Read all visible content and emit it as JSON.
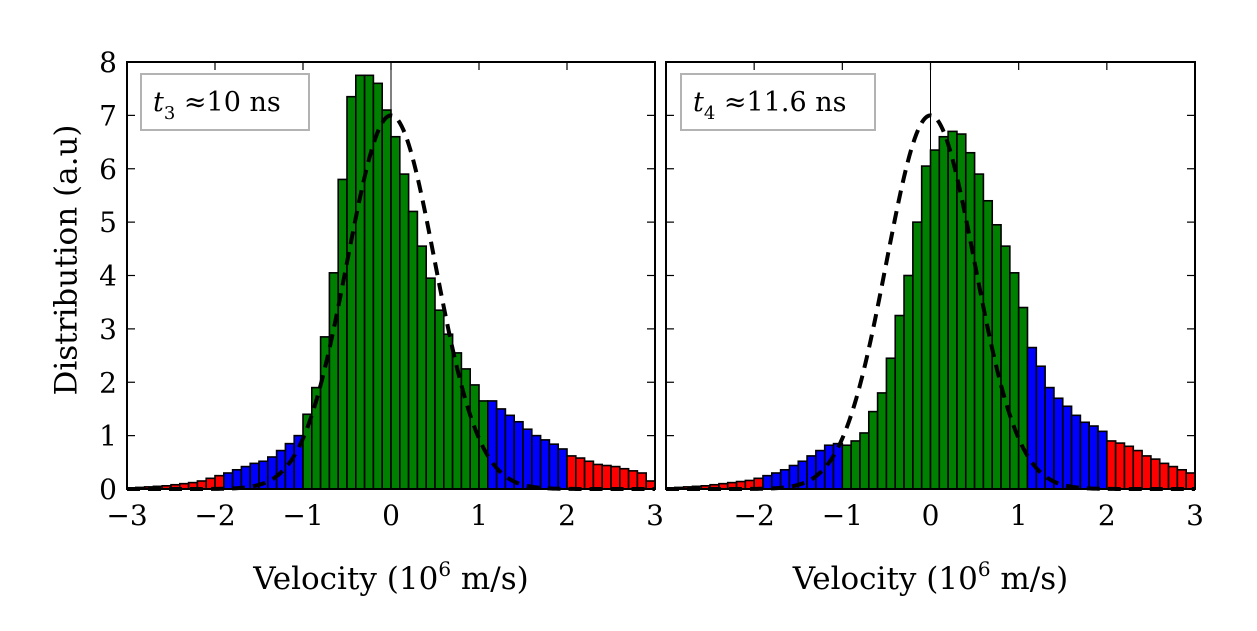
{
  "colors": {
    "outer": "#ff0000",
    "middle": "#0000ff",
    "core": "#008000",
    "edge": "#000000",
    "fit": "#000000",
    "box_border": "#b3b3b3"
  },
  "ylabel": "Distribution (a.u)",
  "xlabel": {
    "prefix": "Velocity (10",
    "exp": "6",
    "suffix": " m/s)"
  },
  "chart_data": [
    {
      "type": "bar",
      "annotation": {
        "var": "t",
        "sub": "3",
        "text": " ≈10 ns"
      },
      "xlim": [
        -3,
        3
      ],
      "ylim": [
        0,
        8
      ],
      "xticks": [
        "−3",
        "−2",
        "−1",
        "0",
        "1",
        "2",
        "3"
      ],
      "yticks": [
        "0",
        "1",
        "2",
        "3",
        "4",
        "5",
        "6",
        "7",
        "8"
      ],
      "bin_width": 0.1,
      "bins_start": [
        -3.0,
        -2.9,
        -2.8,
        -2.7,
        -2.6,
        -2.5,
        -2.4,
        -2.3,
        -2.2,
        -2.1,
        -2.0,
        -1.9,
        -1.8,
        -1.7,
        -1.6,
        -1.5,
        -1.4,
        -1.3,
        -1.2,
        -1.1,
        -1.0,
        -0.9,
        -0.8,
        -0.7,
        -0.6,
        -0.5,
        -0.4,
        -0.3,
        -0.2,
        -0.1,
        0.0,
        0.1,
        0.2,
        0.3,
        0.4,
        0.5,
        0.6,
        0.7,
        0.8,
        0.9,
        1.0,
        1.1,
        1.2,
        1.3,
        1.4,
        1.5,
        1.6,
        1.7,
        1.8,
        1.9,
        2.0,
        2.1,
        2.2,
        2.3,
        2.4,
        2.5,
        2.6,
        2.7,
        2.8,
        2.9
      ],
      "values": [
        0.02,
        0.03,
        0.04,
        0.05,
        0.06,
        0.08,
        0.1,
        0.12,
        0.15,
        0.2,
        0.25,
        0.3,
        0.36,
        0.42,
        0.48,
        0.52,
        0.6,
        0.72,
        0.85,
        1.0,
        1.4,
        1.9,
        2.85,
        4.05,
        5.8,
        7.35,
        7.75,
        7.75,
        7.6,
        7.1,
        6.6,
        5.9,
        5.2,
        4.55,
        3.95,
        3.35,
        2.9,
        2.55,
        2.25,
        1.95,
        1.65,
        1.65,
        1.5,
        1.38,
        1.26,
        1.12,
        1.0,
        0.92,
        0.84,
        0.75,
        0.62,
        0.58,
        0.52,
        0.46,
        0.44,
        0.42,
        0.38,
        0.34,
        0.3,
        0.15
      ],
      "groups": [
        "outer",
        "outer",
        "outer",
        "outer",
        "outer",
        "outer",
        "outer",
        "outer",
        "outer",
        "outer",
        "outer",
        "middle",
        "middle",
        "middle",
        "middle",
        "middle",
        "middle",
        "middle",
        "middle",
        "middle",
        "core",
        "core",
        "core",
        "core",
        "core",
        "core",
        "core",
        "core",
        "core",
        "core",
        "core",
        "core",
        "core",
        "core",
        "core",
        "core",
        "core",
        "core",
        "core",
        "core",
        "core",
        "middle",
        "middle",
        "middle",
        "middle",
        "middle",
        "middle",
        "middle",
        "middle",
        "middle",
        "outer",
        "outer",
        "outer",
        "outer",
        "outer",
        "outer",
        "outer",
        "outer",
        "outer",
        "outer"
      ],
      "gaussian_fit": {
        "style": "dashed",
        "amplitude": 7.0,
        "mean": 0.0,
        "sigma": 0.5
      }
    },
    {
      "type": "bar",
      "annotation": {
        "var": "t",
        "sub": "4",
        "text": " ≈11.6 ns"
      },
      "xlim": [
        -3,
        3
      ],
      "ylim": [
        0,
        8
      ],
      "xticks": [
        "",
        "−2",
        "−1",
        "0",
        "1",
        "2",
        "3"
      ],
      "yticks": [],
      "bin_width": 0.1,
      "bins_start": [
        -3.0,
        -2.9,
        -2.8,
        -2.7,
        -2.6,
        -2.5,
        -2.4,
        -2.3,
        -2.2,
        -2.1,
        -2.0,
        -1.9,
        -1.8,
        -1.7,
        -1.6,
        -1.5,
        -1.4,
        -1.3,
        -1.2,
        -1.1,
        -1.0,
        -0.9,
        -0.8,
        -0.7,
        -0.6,
        -0.5,
        -0.4,
        -0.3,
        -0.2,
        -0.1,
        0.0,
        0.1,
        0.2,
        0.3,
        0.4,
        0.5,
        0.6,
        0.7,
        0.8,
        0.9,
        1.0,
        1.1,
        1.2,
        1.3,
        1.4,
        1.5,
        1.6,
        1.7,
        1.8,
        1.9,
        2.0,
        2.1,
        2.2,
        2.3,
        2.4,
        2.5,
        2.6,
        2.7,
        2.8,
        2.9
      ],
      "values": [
        0.02,
        0.03,
        0.04,
        0.05,
        0.06,
        0.08,
        0.1,
        0.12,
        0.14,
        0.16,
        0.2,
        0.25,
        0.3,
        0.36,
        0.44,
        0.52,
        0.62,
        0.72,
        0.82,
        0.85,
        0.82,
        0.9,
        1.05,
        1.45,
        1.8,
        2.45,
        3.25,
        4.0,
        5.0,
        6.05,
        6.35,
        6.6,
        6.7,
        6.65,
        6.3,
        5.9,
        5.4,
        4.95,
        4.55,
        4.05,
        3.4,
        2.65,
        2.3,
        1.9,
        1.7,
        1.55,
        1.38,
        1.25,
        1.18,
        1.08,
        0.9,
        0.86,
        0.8,
        0.72,
        0.62,
        0.56,
        0.48,
        0.42,
        0.36,
        0.3
      ],
      "groups": [
        "outer",
        "outer",
        "outer",
        "outer",
        "outer",
        "outer",
        "outer",
        "outer",
        "outer",
        "outer",
        "outer",
        "middle",
        "middle",
        "middle",
        "middle",
        "middle",
        "middle",
        "middle",
        "middle",
        "middle",
        "core",
        "core",
        "core",
        "core",
        "core",
        "core",
        "core",
        "core",
        "core",
        "core",
        "core",
        "core",
        "core",
        "core",
        "core",
        "core",
        "core",
        "core",
        "core",
        "core",
        "core",
        "middle",
        "middle",
        "middle",
        "middle",
        "middle",
        "middle",
        "middle",
        "middle",
        "middle",
        "outer",
        "outer",
        "outer",
        "outer",
        "outer",
        "outer",
        "outer",
        "outer",
        "outer",
        "outer"
      ],
      "gaussian_fit": {
        "style": "dashed",
        "amplitude": 7.0,
        "mean": 0.0,
        "sigma": 0.5
      }
    }
  ]
}
